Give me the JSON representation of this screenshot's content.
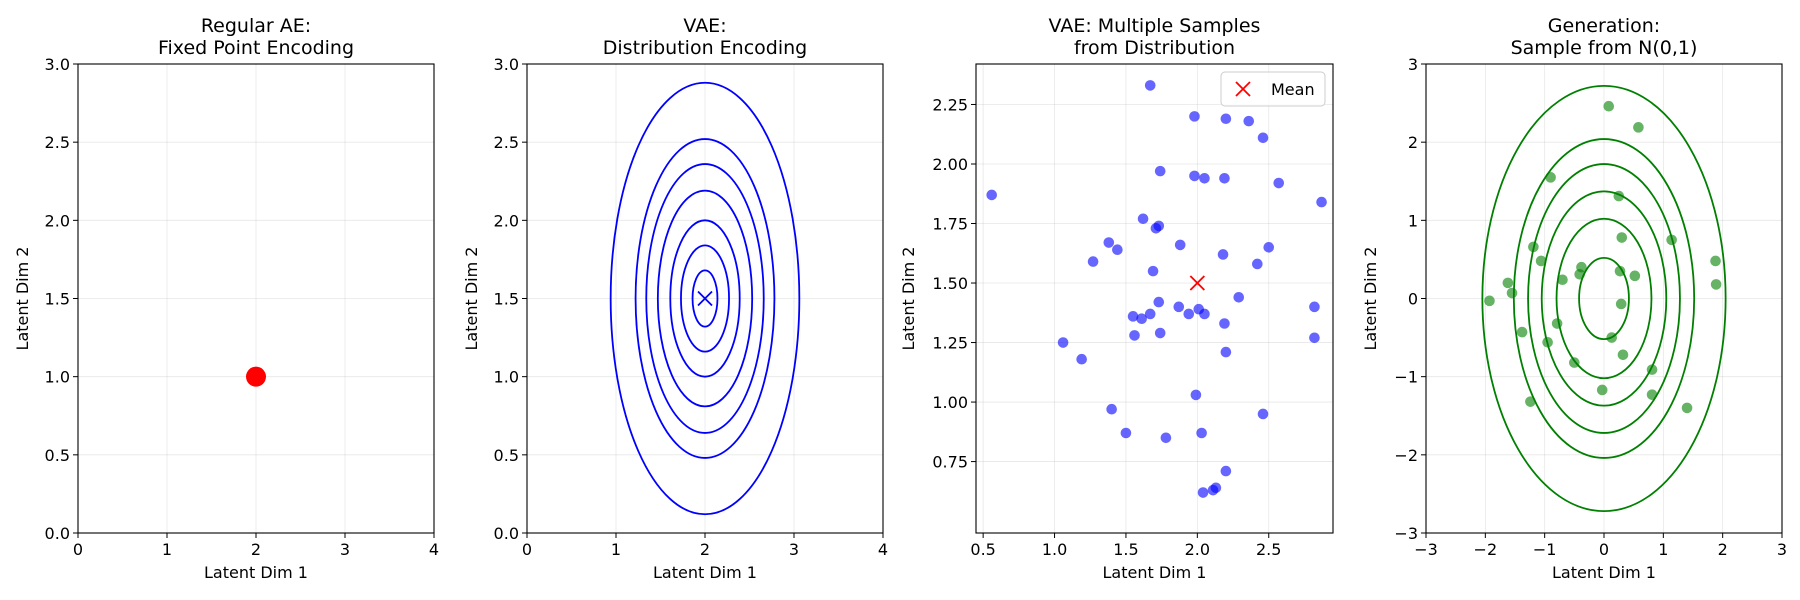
{
  "chart_data": [
    {
      "type": "scatter",
      "title": [
        "Regular AE:",
        "Fixed Point Encoding"
      ],
      "xlabel": "Latent Dim 1",
      "ylabel": "Latent Dim 2",
      "xlim": [
        0,
        4
      ],
      "ylim": [
        0,
        3
      ],
      "xticks": [
        0,
        1,
        2,
        3,
        4
      ],
      "yticks": [
        0.0,
        0.5,
        1.0,
        1.5,
        2.0,
        2.5,
        3.0
      ],
      "xtick_labels": [
        "0",
        "1",
        "2",
        "3",
        "4"
      ],
      "ytick_labels": [
        "0.0",
        "0.5",
        "1.0",
        "1.5",
        "2.0",
        "2.5",
        "3.0"
      ],
      "grid": true,
      "color": "#ff0000",
      "points": [
        {
          "x": 2,
          "y": 1
        }
      ]
    },
    {
      "type": "contour",
      "title": [
        "VAE:",
        "Distribution Encoding"
      ],
      "xlabel": "Latent Dim 1",
      "ylabel": "Latent Dim 2",
      "xlim": [
        0,
        4
      ],
      "ylim": [
        0,
        3
      ],
      "xticks": [
        0,
        1,
        2,
        3,
        4
      ],
      "yticks": [
        0.0,
        0.5,
        1.0,
        1.5,
        2.0,
        2.5,
        3.0
      ],
      "xtick_labels": [
        "0",
        "1",
        "2",
        "3",
        "4"
      ],
      "ytick_labels": [
        "0.0",
        "0.5",
        "1.0",
        "1.5",
        "2.0",
        "2.5",
        "3.0"
      ],
      "grid": true,
      "color": "#0000ff",
      "mean": {
        "x": 2,
        "y": 1.5,
        "marker": "x"
      },
      "contours": [
        {
          "rx": 0.14,
          "ry": 0.18
        },
        {
          "rx": 0.27,
          "ry": 0.34
        },
        {
          "rx": 0.39,
          "ry": 0.5
        },
        {
          "rx": 0.53,
          "ry": 0.69
        },
        {
          "rx": 0.66,
          "ry": 0.86
        },
        {
          "rx": 0.78,
          "ry": 1.02
        },
        {
          "rx": 1.06,
          "ry": 1.38
        }
      ]
    },
    {
      "type": "scatter",
      "title": [
        "VAE: Multiple Samples",
        "from Distribution"
      ],
      "xlabel": "Latent Dim 1",
      "ylabel": "Latent Dim 2",
      "xlim": [
        0.45,
        2.95
      ],
      "ylim": [
        0.45,
        2.42
      ],
      "xticks": [
        0.5,
        1.0,
        1.5,
        2.0,
        2.5
      ],
      "yticks": [
        0.75,
        1.0,
        1.25,
        1.5,
        1.75,
        2.0,
        2.25
      ],
      "xtick_labels": [
        "0.5",
        "1.0",
        "1.5",
        "2.0",
        "2.5"
      ],
      "ytick_labels": [
        "0.75",
        "1.00",
        "1.25",
        "1.50",
        "1.75",
        "2.00",
        "2.25"
      ],
      "grid": true,
      "color": "#0000ff",
      "mean": {
        "x": 2.0,
        "y": 1.5,
        "color": "#ff0000",
        "label": "Mean"
      },
      "legend": {
        "position": "upper-right",
        "entries": [
          "Mean"
        ]
      },
      "points": [
        {
          "x": 0.56,
          "y": 1.87
        },
        {
          "x": 1.67,
          "y": 2.33
        },
        {
          "x": 1.98,
          "y": 2.2
        },
        {
          "x": 2.2,
          "y": 2.19
        },
        {
          "x": 2.36,
          "y": 2.18
        },
        {
          "x": 2.46,
          "y": 2.11
        },
        {
          "x": 1.74,
          "y": 1.97
        },
        {
          "x": 1.98,
          "y": 1.95
        },
        {
          "x": 2.05,
          "y": 1.94
        },
        {
          "x": 2.19,
          "y": 1.94
        },
        {
          "x": 2.57,
          "y": 1.92
        },
        {
          "x": 2.87,
          "y": 1.84
        },
        {
          "x": 1.62,
          "y": 1.77
        },
        {
          "x": 1.73,
          "y": 1.74
        },
        {
          "x": 1.71,
          "y": 1.73
        },
        {
          "x": 1.38,
          "y": 1.67
        },
        {
          "x": 1.44,
          "y": 1.64
        },
        {
          "x": 1.88,
          "y": 1.66
        },
        {
          "x": 2.5,
          "y": 1.65
        },
        {
          "x": 2.18,
          "y": 1.62
        },
        {
          "x": 1.27,
          "y": 1.59
        },
        {
          "x": 2.42,
          "y": 1.58
        },
        {
          "x": 1.69,
          "y": 1.55
        },
        {
          "x": 2.29,
          "y": 1.44
        },
        {
          "x": 1.73,
          "y": 1.42
        },
        {
          "x": 1.87,
          "y": 1.4
        },
        {
          "x": 2.01,
          "y": 1.39
        },
        {
          "x": 2.82,
          "y": 1.4
        },
        {
          "x": 1.67,
          "y": 1.37
        },
        {
          "x": 1.94,
          "y": 1.37
        },
        {
          "x": 2.05,
          "y": 1.37
        },
        {
          "x": 1.55,
          "y": 1.36
        },
        {
          "x": 1.61,
          "y": 1.35
        },
        {
          "x": 2.19,
          "y": 1.33
        },
        {
          "x": 1.74,
          "y": 1.29
        },
        {
          "x": 1.56,
          "y": 1.28
        },
        {
          "x": 2.82,
          "y": 1.27
        },
        {
          "x": 1.06,
          "y": 1.25
        },
        {
          "x": 2.2,
          "y": 1.21
        },
        {
          "x": 1.19,
          "y": 1.18
        },
        {
          "x": 1.99,
          "y": 1.03
        },
        {
          "x": 1.4,
          "y": 0.97
        },
        {
          "x": 2.46,
          "y": 0.95
        },
        {
          "x": 1.5,
          "y": 0.87
        },
        {
          "x": 2.03,
          "y": 0.87
        },
        {
          "x": 1.78,
          "y": 0.85
        },
        {
          "x": 2.2,
          "y": 0.71
        },
        {
          "x": 2.13,
          "y": 0.64
        },
        {
          "x": 2.11,
          "y": 0.63
        },
        {
          "x": 2.04,
          "y": 0.62
        }
      ]
    },
    {
      "type": "contour",
      "title": [
        "Generation:",
        "Sample from N(0,1)"
      ],
      "xlabel": "Latent Dim 1",
      "ylabel": "Latent Dim 2",
      "xlim": [
        -3,
        3
      ],
      "ylim": [
        -3,
        3
      ],
      "xticks": [
        -3,
        -2,
        -1,
        0,
        1,
        2,
        3
      ],
      "yticks": [
        -3,
        -2,
        -1,
        0,
        1,
        2,
        3
      ],
      "xtick_labels": [
        "−3",
        "−2",
        "−1",
        "0",
        "1",
        "2",
        "3"
      ],
      "ytick_labels": [
        "−3",
        "−2",
        "−1",
        "0",
        "1",
        "2",
        "3"
      ],
      "grid": true,
      "color": "#008000",
      "contours": [
        {
          "rx": 0.42,
          "ry": 0.52
        },
        {
          "rx": 0.8,
          "ry": 1.02
        },
        {
          "rx": 1.05,
          "ry": 1.37
        },
        {
          "rx": 1.28,
          "ry": 1.72
        },
        {
          "rx": 1.52,
          "ry": 2.04
        },
        {
          "rx": 2.05,
          "ry": 2.72
        }
      ],
      "points": [
        {
          "x": 0.08,
          "y": 2.46
        },
        {
          "x": 0.58,
          "y": 2.19
        },
        {
          "x": -0.9,
          "y": 1.55
        },
        {
          "x": 0.25,
          "y": 1.31
        },
        {
          "x": 0.3,
          "y": 0.78
        },
        {
          "x": 1.14,
          "y": 0.75
        },
        {
          "x": -1.19,
          "y": 0.66
        },
        {
          "x": -1.06,
          "y": 0.48
        },
        {
          "x": 1.88,
          "y": 0.48
        },
        {
          "x": -0.38,
          "y": 0.4
        },
        {
          "x": -0.41,
          "y": 0.31
        },
        {
          "x": 0.27,
          "y": 0.35
        },
        {
          "x": 0.52,
          "y": 0.29
        },
        {
          "x": -0.7,
          "y": 0.24
        },
        {
          "x": -1.62,
          "y": 0.2
        },
        {
          "x": 1.89,
          "y": 0.18
        },
        {
          "x": -1.55,
          "y": 0.07
        },
        {
          "x": -1.93,
          "y": -0.03
        },
        {
          "x": 0.29,
          "y": -0.07
        },
        {
          "x": -0.79,
          "y": -0.32
        },
        {
          "x": -1.38,
          "y": -0.43
        },
        {
          "x": 0.13,
          "y": -0.5
        },
        {
          "x": -0.95,
          "y": -0.56
        },
        {
          "x": 0.32,
          "y": -0.72
        },
        {
          "x": -0.5,
          "y": -0.82
        },
        {
          "x": 0.81,
          "y": -0.91
        },
        {
          "x": -0.03,
          "y": -1.17
        },
        {
          "x": 0.81,
          "y": -1.23
        },
        {
          "x": -1.24,
          "y": -1.32
        },
        {
          "x": 1.4,
          "y": -1.4
        }
      ]
    }
  ]
}
